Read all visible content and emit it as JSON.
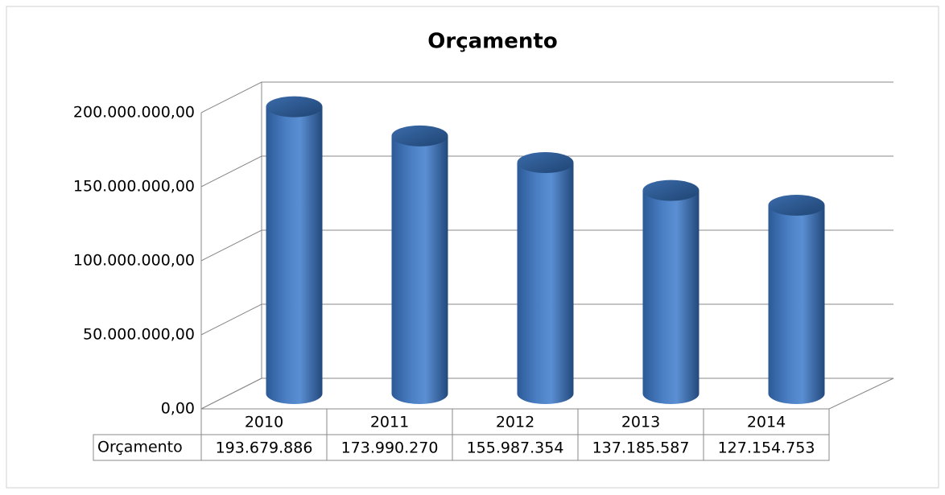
{
  "chart_data": {
    "type": "bar3d",
    "title": "Orçamento",
    "categories": [
      "2010",
      "2011",
      "2012",
      "2013",
      "2014"
    ],
    "series": [
      {
        "name": "Orçamento",
        "color": "#4f81bd",
        "values": [
          193679886,
          173990270,
          155987354,
          137185587,
          127154753
        ],
        "value_labels": [
          "193.679.886",
          "173.990.270",
          "155.987.354",
          "137.185.587",
          "127.154.753"
        ]
      }
    ],
    "ylim": [
      0,
      200000000
    ],
    "yticks": [
      {
        "value": 0,
        "label": "0,00"
      },
      {
        "value": 50000000,
        "label": "50.000.000,00"
      },
      {
        "value": 100000000,
        "label": "100.000.000,00"
      },
      {
        "value": 150000000,
        "label": "150.000.000,00"
      },
      {
        "value": 200000000,
        "label": "200.000.000,00"
      }
    ],
    "grid": true
  }
}
